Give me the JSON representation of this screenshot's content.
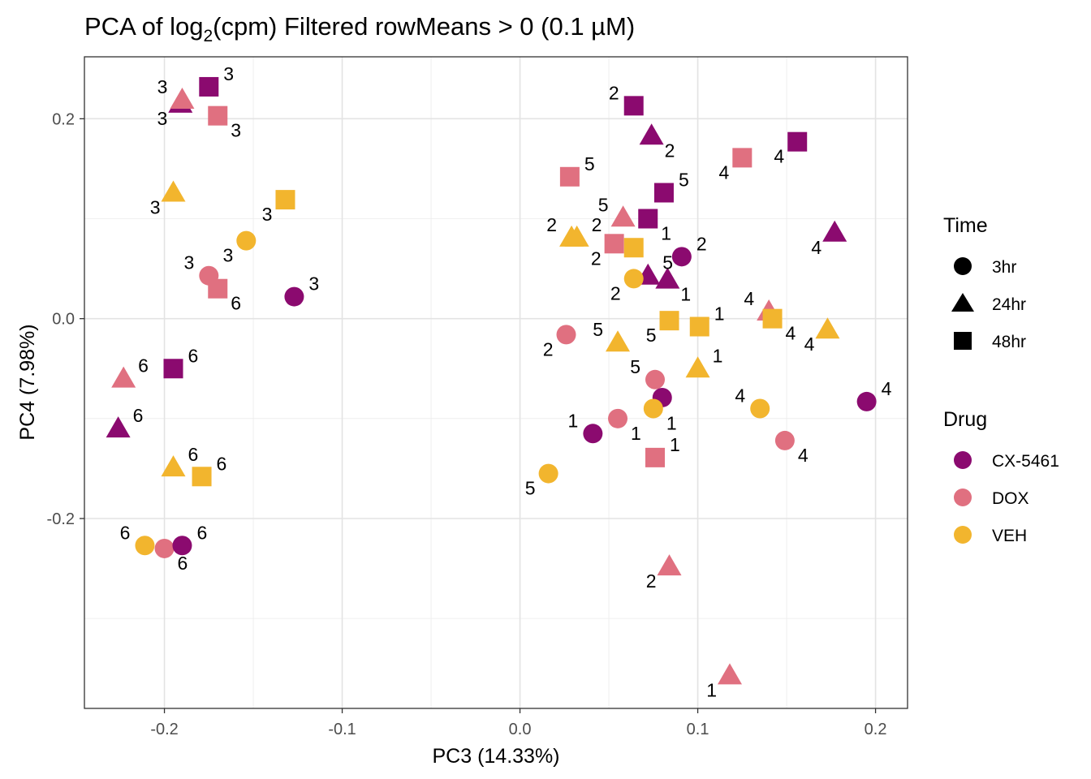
{
  "chart_data": {
    "type": "scatter",
    "title_prefix": "PCA of log",
    "title_subscript": "2",
    "title_suffix": "(cpm) Filtered rowMeans > 0 (0.1 µM)",
    "xlabel": "PC3 (14.33%)",
    "ylabel": "PC4 (7.98%)",
    "xlim": [
      -0.245,
      0.218
    ],
    "ylim": [
      -0.39,
      0.262
    ],
    "xticks": [
      -0.2,
      -0.1,
      0.0,
      0.1,
      0.2
    ],
    "xtick_labels": [
      "-0.2",
      "-0.1",
      "0.0",
      "0.1",
      "0.2"
    ],
    "yticks": [
      -0.2,
      0.0,
      0.2
    ],
    "ytick_labels": [
      "-0.2",
      "0.0",
      "0.2"
    ],
    "grid": true,
    "colors": {
      "CX-5461": "#8B0A6F",
      "DOX": "#E07080",
      "VEH": "#F2B52E"
    },
    "legend": {
      "position": "right",
      "time_title": "Time",
      "time_items": [
        {
          "label": "3hr",
          "shape": "circle"
        },
        {
          "label": "24hr",
          "shape": "triangle"
        },
        {
          "label": "48hr",
          "shape": "square"
        }
      ],
      "drug_title": "Drug",
      "drug_items": [
        "CX-5461",
        "DOX",
        "VEH"
      ]
    },
    "points": [
      {
        "drug": "CX-5461",
        "time": "48hr",
        "x": -0.175,
        "y": 0.232,
        "label": "3",
        "lpos": "ne"
      },
      {
        "drug": "CX-5461",
        "time": "24hr",
        "x": -0.191,
        "y": 0.215,
        "label": "3",
        "lpos": "sw"
      },
      {
        "drug": "DOX",
        "time": "24hr",
        "x": -0.19,
        "y": 0.219,
        "label": "3",
        "lpos": "nw"
      },
      {
        "drug": "DOX",
        "time": "48hr",
        "x": -0.17,
        "y": 0.203,
        "label": "3",
        "lpos": "se"
      },
      {
        "drug": "VEH",
        "time": "24hr",
        "x": -0.195,
        "y": 0.126,
        "label": "3",
        "lpos": "sw"
      },
      {
        "drug": "VEH",
        "time": "48hr",
        "x": -0.132,
        "y": 0.119,
        "label": "3",
        "lpos": "sw"
      },
      {
        "drug": "VEH",
        "time": "3hr",
        "x": -0.154,
        "y": 0.078,
        "label": "3",
        "lpos": "sw"
      },
      {
        "drug": "DOX",
        "time": "3hr",
        "x": -0.175,
        "y": 0.043,
        "label": "3",
        "lpos": "nw"
      },
      {
        "drug": "DOX",
        "time": "48hr",
        "x": -0.17,
        "y": 0.03,
        "label": "6",
        "lpos": "se"
      },
      {
        "drug": "CX-5461",
        "time": "3hr",
        "x": -0.127,
        "y": 0.022,
        "label": "3",
        "lpos": "ne"
      },
      {
        "drug": "CX-5461",
        "time": "48hr",
        "x": -0.195,
        "y": -0.05,
        "label": "6",
        "lpos": "ne"
      },
      {
        "drug": "DOX",
        "time": "24hr",
        "x": -0.223,
        "y": -0.06,
        "label": "6",
        "lpos": "ne"
      },
      {
        "drug": "CX-5461",
        "time": "24hr",
        "x": -0.226,
        "y": -0.11,
        "label": "6",
        "lpos": "ne"
      },
      {
        "drug": "VEH",
        "time": "24hr",
        "x": -0.195,
        "y": -0.149,
        "label": "6",
        "lpos": "ne"
      },
      {
        "drug": "VEH",
        "time": "48hr",
        "x": -0.179,
        "y": -0.158,
        "label": "6",
        "lpos": "ne"
      },
      {
        "drug": "VEH",
        "time": "3hr",
        "x": -0.211,
        "y": -0.227,
        "label": "6",
        "lpos": "nw"
      },
      {
        "drug": "DOX",
        "time": "3hr",
        "x": -0.2,
        "y": -0.23,
        "label": "6",
        "lpos": "se"
      },
      {
        "drug": "CX-5461",
        "time": "3hr",
        "x": -0.19,
        "y": -0.227,
        "label": "6",
        "lpos": "ne"
      },
      {
        "drug": "CX-5461",
        "time": "48hr",
        "x": 0.064,
        "y": 0.213,
        "label": "2",
        "lpos": "nw"
      },
      {
        "drug": "CX-5461",
        "time": "24hr",
        "x": 0.074,
        "y": 0.183,
        "label": "2",
        "lpos": "se"
      },
      {
        "drug": "DOX",
        "time": "48hr",
        "x": 0.028,
        "y": 0.142,
        "label": "5",
        "lpos": "ne"
      },
      {
        "drug": "CX-5461",
        "time": "48hr",
        "x": 0.156,
        "y": 0.177,
        "label": "4",
        "lpos": "sw"
      },
      {
        "drug": "DOX",
        "time": "48hr",
        "x": 0.125,
        "y": 0.161,
        "label": "4",
        "lpos": "sw"
      },
      {
        "drug": "CX-5461",
        "time": "48hr",
        "x": 0.081,
        "y": 0.126,
        "label": "5",
        "lpos": "ne"
      },
      {
        "drug": "DOX",
        "time": "24hr",
        "x": 0.058,
        "y": 0.101,
        "label": "5",
        "lpos": "nw"
      },
      {
        "drug": "CX-5461",
        "time": "48hr",
        "x": 0.072,
        "y": 0.1,
        "label": "1",
        "lpos": "se"
      },
      {
        "drug": "VEH",
        "time": "24hr",
        "x": 0.029,
        "y": 0.081,
        "label": "2",
        "lpos": "nw"
      },
      {
        "drug": "VEH",
        "time": "24hr",
        "x": 0.032,
        "y": 0.081,
        "label": "2",
        "lpos": "ne"
      },
      {
        "drug": "DOX",
        "time": "48hr",
        "x": 0.053,
        "y": 0.075,
        "label": "2",
        "lpos": "sw"
      },
      {
        "drug": "VEH",
        "time": "48hr",
        "x": 0.064,
        "y": 0.071,
        "label": "",
        "lpos": "ne"
      },
      {
        "drug": "CX-5461",
        "time": "24hr",
        "x": 0.177,
        "y": 0.086,
        "label": "4",
        "lpos": "sw"
      },
      {
        "drug": "CX-5461",
        "time": "3hr",
        "x": 0.091,
        "y": 0.062,
        "label": "2",
        "lpos": "ne"
      },
      {
        "drug": "CX-5461",
        "time": "24hr",
        "x": 0.072,
        "y": 0.043,
        "label": "5",
        "lpos": "ne"
      },
      {
        "drug": "CX-5461",
        "time": "24hr",
        "x": 0.083,
        "y": 0.039,
        "label": "1",
        "lpos": "se"
      },
      {
        "drug": "VEH",
        "time": "3hr",
        "x": 0.064,
        "y": 0.04,
        "label": "2",
        "lpos": "sw"
      },
      {
        "drug": "DOX",
        "time": "24hr",
        "x": 0.14,
        "y": 0.007,
        "label": "4",
        "lpos": "nw"
      },
      {
        "drug": "VEH",
        "time": "48hr",
        "x": 0.142,
        "y": 0.0,
        "label": "4",
        "lpos": "se"
      },
      {
        "drug": "VEH",
        "time": "24hr",
        "x": 0.173,
        "y": -0.011,
        "label": "4",
        "lpos": "sw"
      },
      {
        "drug": "VEH",
        "time": "48hr",
        "x": 0.084,
        "y": -0.002,
        "label": "5",
        "lpos": "sw"
      },
      {
        "drug": "VEH",
        "time": "48hr",
        "x": 0.101,
        "y": -0.008,
        "label": "1",
        "lpos": "ne"
      },
      {
        "drug": "DOX",
        "time": "3hr",
        "x": 0.026,
        "y": -0.016,
        "label": "2",
        "lpos": "sw"
      },
      {
        "drug": "VEH",
        "time": "24hr",
        "x": 0.055,
        "y": -0.024,
        "label": "5",
        "lpos": "nw"
      },
      {
        "drug": "VEH",
        "time": "24hr",
        "x": 0.1,
        "y": -0.05,
        "label": "1",
        "lpos": "ne"
      },
      {
        "drug": "DOX",
        "time": "3hr",
        "x": 0.076,
        "y": -0.061,
        "label": "5",
        "lpos": "nw"
      },
      {
        "drug": "CX-5461",
        "time": "3hr",
        "x": 0.08,
        "y": -0.079,
        "label": "",
        "lpos": "ne"
      },
      {
        "drug": "CX-5461",
        "time": "3hr",
        "x": 0.195,
        "y": -0.083,
        "label": "4",
        "lpos": "ne"
      },
      {
        "drug": "VEH",
        "time": "3hr",
        "x": 0.135,
        "y": -0.09,
        "label": "4",
        "lpos": "nw"
      },
      {
        "drug": "VEH",
        "time": "3hr",
        "x": 0.075,
        "y": -0.09,
        "label": "1",
        "lpos": "se"
      },
      {
        "drug": "DOX",
        "time": "3hr",
        "x": 0.055,
        "y": -0.1,
        "label": "1",
        "lpos": "se"
      },
      {
        "drug": "CX-5461",
        "time": "3hr",
        "x": 0.041,
        "y": -0.115,
        "label": "1",
        "lpos": "nw"
      },
      {
        "drug": "DOX",
        "time": "3hr",
        "x": 0.149,
        "y": -0.122,
        "label": "4",
        "lpos": "se"
      },
      {
        "drug": "DOX",
        "time": "48hr",
        "x": 0.076,
        "y": -0.139,
        "label": "1",
        "lpos": "ne"
      },
      {
        "drug": "VEH",
        "time": "3hr",
        "x": 0.016,
        "y": -0.155,
        "label": "5",
        "lpos": "sw"
      },
      {
        "drug": "DOX",
        "time": "24hr",
        "x": 0.084,
        "y": -0.248,
        "label": "2",
        "lpos": "sw"
      },
      {
        "drug": "DOX",
        "time": "24hr",
        "x": 0.118,
        "y": -0.357,
        "label": "1",
        "lpos": "sw"
      }
    ]
  }
}
